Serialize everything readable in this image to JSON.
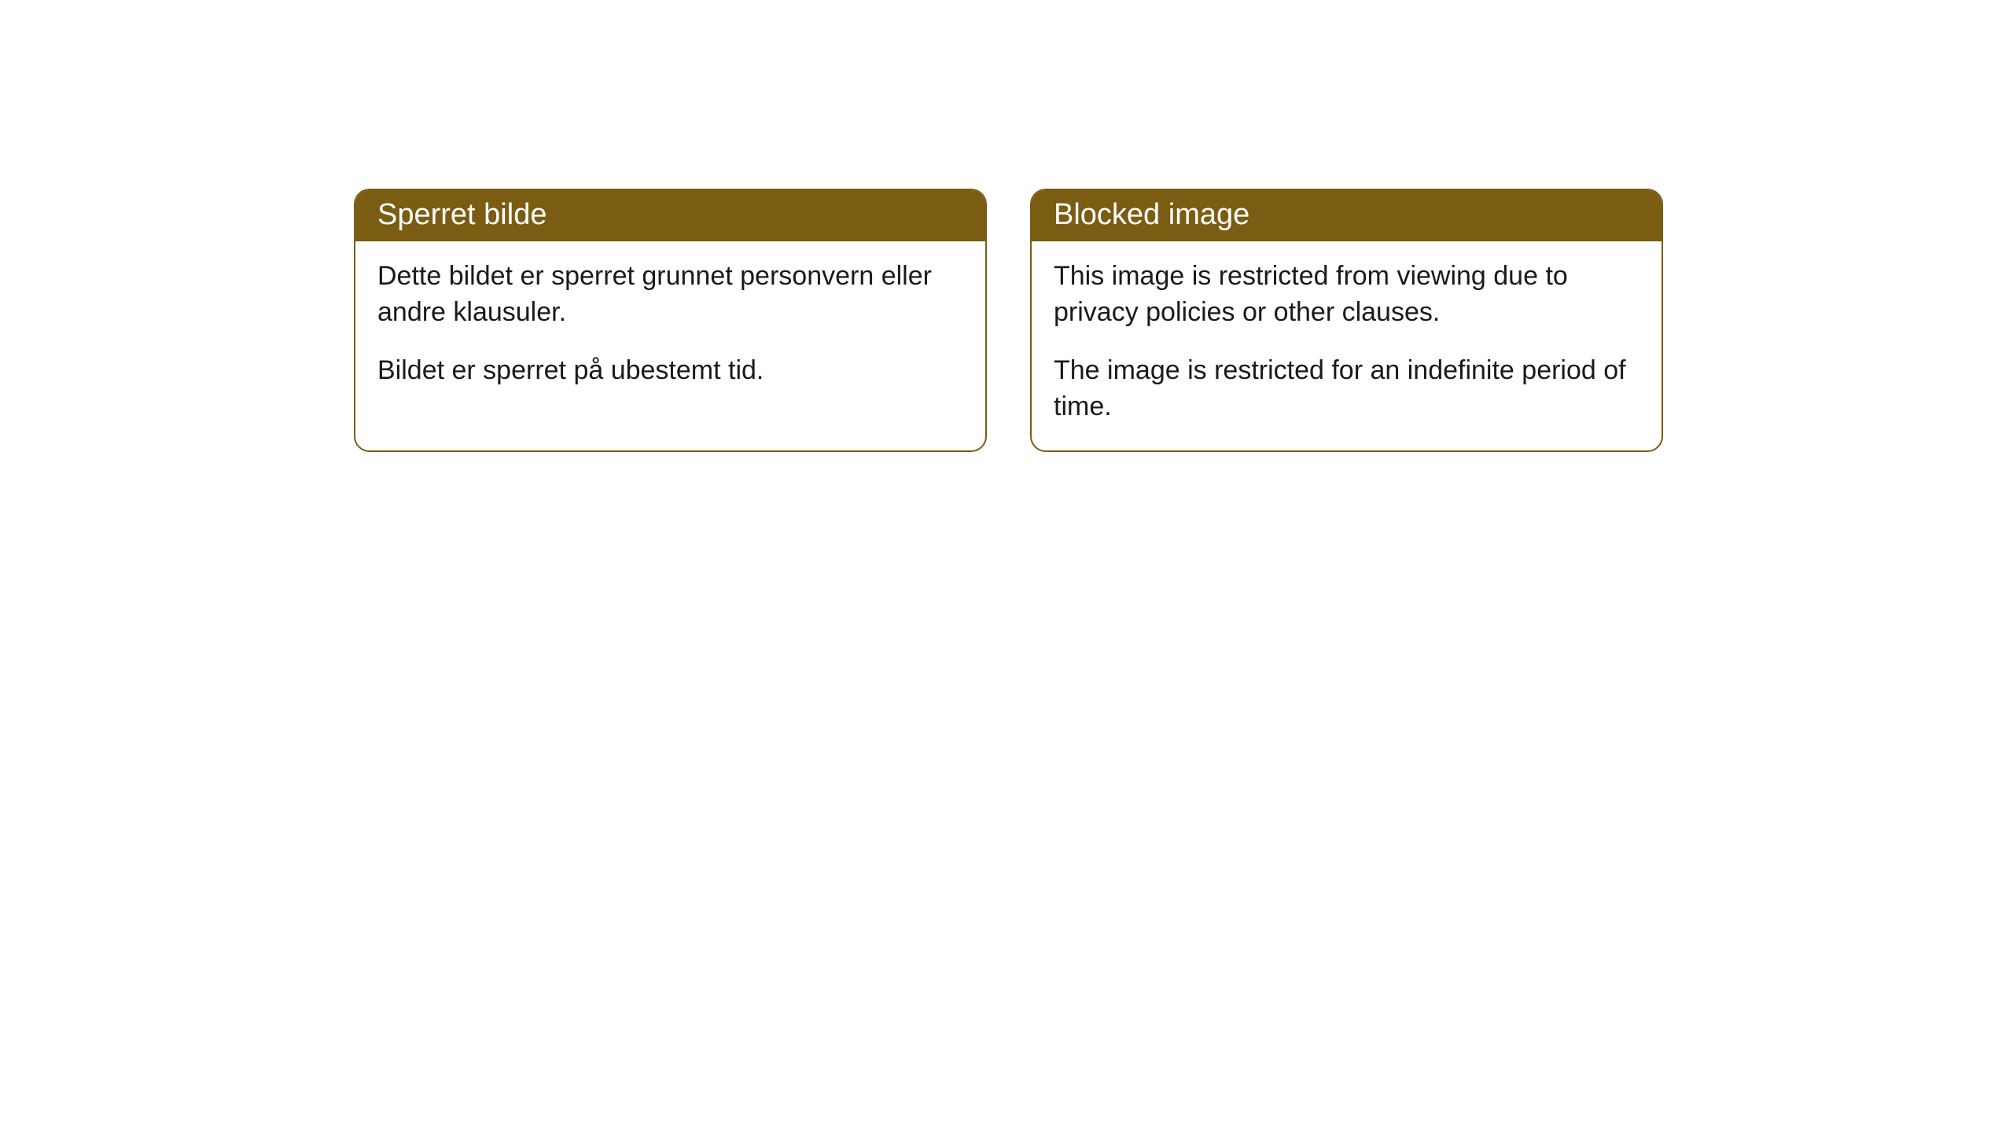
{
  "cards": [
    {
      "title": "Sperret bilde",
      "paragraph1": "Dette bildet er sperret grunnet personvern eller andre klausuler.",
      "paragraph2": "Bildet er sperret på ubestemt tid."
    },
    {
      "title": "Blocked image",
      "paragraph1": "This image is restricted from viewing due to privacy policies or other clauses.",
      "paragraph2": "The image is restricted for an indefinite period of time."
    }
  ],
  "styling": {
    "header_background": "#7a5c13",
    "header_text_color": "#ffffff",
    "border_color": "#7a5c13",
    "body_background": "#ffffff",
    "body_text_color": "#1a1a1a",
    "border_radius": 20,
    "header_fontsize": 38,
    "body_fontsize": 34
  }
}
